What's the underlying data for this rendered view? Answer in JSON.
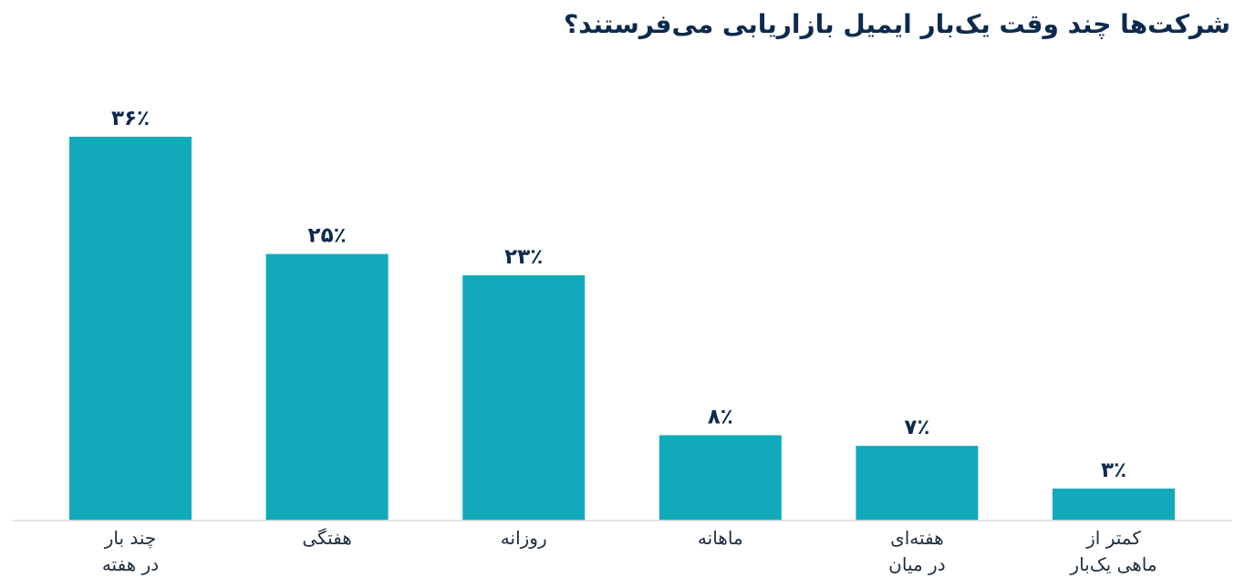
{
  "chart_data": {
    "type": "bar",
    "title": "شرکت‌ها چند وقت یک‌بار ایمیل بازاریابی می‌فرستند؟",
    "categories": [
      [
        "چند بار",
        "در هفته"
      ],
      [
        "هفتگی"
      ],
      [
        "روزانه"
      ],
      [
        "ماهانه"
      ],
      [
        "هفته‌ای",
        "در میان"
      ],
      [
        "کمتر از",
        "ماهی یک‌بار"
      ]
    ],
    "values": [
      36,
      25,
      23,
      8,
      7,
      3
    ],
    "value_labels": [
      "۳۶٪",
      "۲۵٪",
      "۲۳٪",
      "۸٪",
      "۷٪",
      "۳٪"
    ],
    "ylim": [
      0,
      36
    ],
    "grid": false,
    "bar_color": "#11aabb",
    "axis_color": "#d9dde2"
  }
}
